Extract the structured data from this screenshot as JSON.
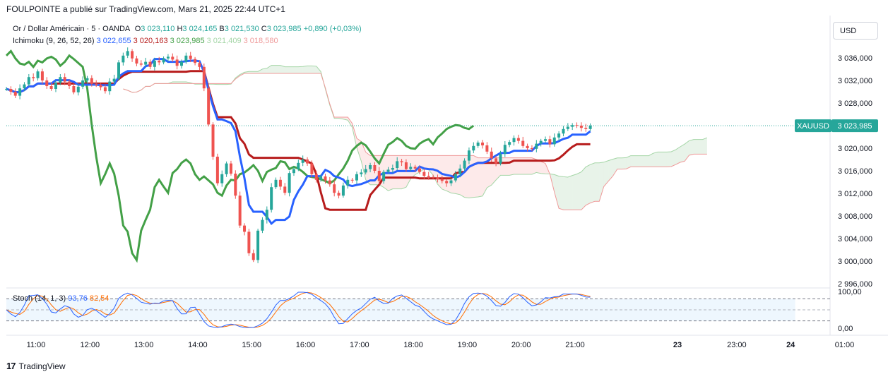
{
  "header": {
    "publish_line": "FOULPOINTE a publié sur TradingView.com, Mars 21, 2025 22:44 UTC+1"
  },
  "symbol": {
    "name": "Or / Dollar Américain · 5 · OANDA",
    "o_label": "O",
    "o": "3 023,110",
    "h_label": "H",
    "h": "3 024,165",
    "b_label": "B",
    "b": "3 021,530",
    "c_label": "C",
    "c": "3 023,985",
    "change": "+0,890 (+0,03%)",
    "ticker": "XAUUSD",
    "last_price": "3 023,985"
  },
  "ichimoku": {
    "label": "Ichimoku (9, 26, 52, 26)",
    "v1": "3 022,655",
    "v2": "3 020,163",
    "v3": "3 023,985",
    "v4": "3 021,409",
    "v5": "3 018,580"
  },
  "stoch": {
    "label": "Stoch (14, 1, 3)",
    "k": "93,76",
    "d": "82,54"
  },
  "currency_button": "USD",
  "footer": {
    "brand": "TradingView"
  },
  "colors": {
    "up": "#26a69a",
    "down": "#ef5350",
    "tenkan": "#2962ff",
    "kijun": "#b71c1c",
    "chikou": "#43a047",
    "span_a": "#a5d6a7",
    "span_b": "#ef9a9a",
    "stoch_k": "#2962ff",
    "stoch_d": "#ff6d00"
  },
  "chart_data": [
    {
      "type": "candlestick",
      "title": "Or / Dollar Américain · 5 · OANDA",
      "y_ticks": [
        "2 996,000",
        "3 000,000",
        "3 004,000",
        "3 008,000",
        "3 012,000",
        "3 016,000",
        "3 020,000",
        "3 024,000",
        "3 028,000",
        "3 032,000",
        "3 036,000"
      ],
      "ylim": [
        2995,
        3040
      ],
      "x_ticks": [
        "11:00",
        "12:00",
        "13:00",
        "14:00",
        "15:00",
        "16:00",
        "17:00",
        "18:00",
        "19:00",
        "20:00",
        "21:00",
        "23",
        "23:00",
        "24",
        "01:00"
      ],
      "last_price": 3023.985,
      "candles_close": [
        3030.5,
        3030.0,
        3029.3,
        3030.6,
        3031.3,
        3032.6,
        3032.4,
        3033.6,
        3032.0,
        3031.0,
        3030.5,
        3031.6,
        3032.6,
        3031.8,
        3031.0,
        3029.9,
        3030.9,
        3032.0,
        3032.4,
        3031.4,
        3031.2,
        3030.8,
        3030.1,
        3031.8,
        3032.3,
        3035.2,
        3036.4,
        3037.2,
        3035.9,
        3035.0,
        3034.8,
        3035.3,
        3034.4,
        3035.5,
        3035.2,
        3035.9,
        3036.2,
        3035.7,
        3034.6,
        3035.3,
        3036.4,
        3035.8,
        3035.1,
        3034.4,
        3030.6,
        3024.2,
        3018.5,
        3013.8,
        3015.4,
        3017.3,
        3015.5,
        3011.6,
        3006.3,
        3005.2,
        3001.4,
        3000.2,
        3005.4,
        3007.3,
        3009.1,
        3013.1,
        3014.4,
        3013.2,
        3012.1,
        3015.6,
        3016.3,
        3017.4,
        3018.0,
        3017.3,
        3015.4,
        3014.4,
        3015.0,
        3014.3,
        3013.6,
        3012.1,
        3011.6,
        3013.4,
        3014.4,
        3014.3,
        3015.4,
        3015.7,
        3016.3,
        3017.0,
        3016.0,
        3014.2,
        3015.8,
        3016.2,
        3016.5,
        3017.7,
        3017.5,
        3016.3,
        3016.7,
        3016.4,
        3015.8,
        3015.1,
        3014.9,
        3014.8,
        3014.5,
        3014.2,
        3013.8,
        3014.3,
        3015.4,
        3016.4,
        3017.8,
        3019.6,
        3020.4,
        3021.0,
        3020.5,
        3019.4,
        3018.2,
        3017.3,
        3019.0,
        3020.6,
        3021.1,
        3021.8,
        3021.3,
        3020.4,
        3020.0,
        3019.9,
        3020.8,
        3021.3,
        3021.6,
        3020.7,
        3021.9,
        3022.6,
        3023.4,
        3023.8,
        3024.1,
        3024.0,
        3023.6,
        3023.4,
        3023.985
      ],
      "series": [
        {
          "name": "Ichimoku Tenkan",
          "last": 3022.655
        },
        {
          "name": "Ichimoku Kijun",
          "last": 3020.163
        },
        {
          "name": "Ichimoku Chikou",
          "last": 3023.985
        },
        {
          "name": "Ichimoku Span A",
          "last": 3021.409
        },
        {
          "name": "Ichimoku Span B",
          "last": 3018.58
        }
      ]
    },
    {
      "type": "line",
      "title": "Stoch (14, 1, 3)",
      "y_ticks": [
        "0,00",
        "100,00"
      ],
      "ylim": [
        0,
        100
      ],
      "bands": [
        20,
        80
      ],
      "series": [
        {
          "name": "K",
          "last": 93.76
        },
        {
          "name": "D",
          "last": 82.54
        }
      ]
    }
  ]
}
